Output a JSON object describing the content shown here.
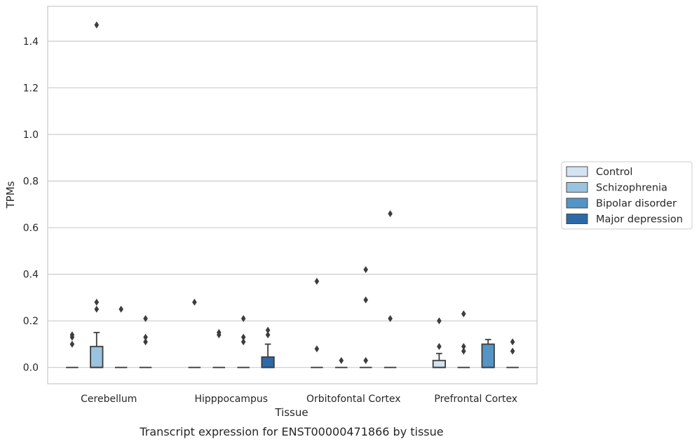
{
  "chart_data": {
    "type": "box",
    "xlabel": "Tissue",
    "ylabel": "TPMs",
    "caption": "Transcript expression for ENST00000471866 by tissue",
    "ylim": [
      -0.07,
      1.55
    ],
    "yticks": [
      "0.0",
      "0.2",
      "0.4",
      "0.6",
      "0.8",
      "1.0",
      "1.2",
      "1.4"
    ],
    "grid": "horizontal",
    "legend_position": "right",
    "categories": [
      "Cerebellum",
      "Hipppocampus",
      "Orbitofontal Cortex",
      "Prefrontal Cortex"
    ],
    "series": [
      {
        "name": "Control",
        "color": "#d3e3f2",
        "boxes": [
          {
            "q1": 0,
            "median": 0,
            "q3": 0,
            "whisker_low": 0,
            "whisker_high": 0,
            "outliers": [
              0.1,
              0.13,
              0.14
            ]
          },
          {
            "q1": 0,
            "median": 0,
            "q3": 0,
            "whisker_low": 0,
            "whisker_high": 0,
            "outliers": [
              0.28
            ]
          },
          {
            "q1": 0,
            "median": 0,
            "q3": 0,
            "whisker_low": 0,
            "whisker_high": 0,
            "outliers": [
              0.08,
              0.37
            ]
          },
          {
            "q1": 0,
            "median": 0,
            "q3": 0.03,
            "whisker_low": 0,
            "whisker_high": 0.06,
            "outliers": [
              0.09,
              0.2
            ]
          }
        ]
      },
      {
        "name": "Schizophrenia",
        "color": "#9ac3de",
        "boxes": [
          {
            "q1": 0,
            "median": 0,
            "q3": 0.09,
            "whisker_low": 0,
            "whisker_high": 0.15,
            "outliers": [
              0.25,
              0.28,
              1.47
            ]
          },
          {
            "q1": 0,
            "median": 0,
            "q3": 0,
            "whisker_low": 0,
            "whisker_high": 0,
            "outliers": [
              0.14,
              0.15
            ]
          },
          {
            "q1": 0,
            "median": 0,
            "q3": 0,
            "whisker_low": 0,
            "whisker_high": 0,
            "outliers": [
              0.03
            ]
          },
          {
            "q1": 0,
            "median": 0,
            "q3": 0,
            "whisker_low": 0,
            "whisker_high": 0,
            "outliers": [
              0.07,
              0.09,
              0.23
            ]
          }
        ]
      },
      {
        "name": "Bipolar disorder",
        "color": "#5595c5",
        "boxes": [
          {
            "q1": 0,
            "median": 0,
            "q3": 0,
            "whisker_low": 0,
            "whisker_high": 0,
            "outliers": [
              0.25
            ]
          },
          {
            "q1": 0,
            "median": 0,
            "q3": 0,
            "whisker_low": 0,
            "whisker_high": 0,
            "outliers": [
              0.11,
              0.13,
              0.21
            ]
          },
          {
            "q1": 0,
            "median": 0,
            "q3": 0,
            "whisker_low": 0,
            "whisker_high": 0,
            "outliers": [
              0.03,
              0.29,
              0.42
            ]
          },
          {
            "q1": 0,
            "median": 0,
            "q3": 0.1,
            "whisker_low": 0,
            "whisker_high": 0.12,
            "outliers": []
          }
        ]
      },
      {
        "name": "Major depression",
        "color": "#2b6aa7",
        "boxes": [
          {
            "q1": 0,
            "median": 0,
            "q3": 0,
            "whisker_low": 0,
            "whisker_high": 0,
            "outliers": [
              0.11,
              0.13,
              0.21
            ]
          },
          {
            "q1": 0,
            "median": 0,
            "q3": 0.045,
            "whisker_low": 0,
            "whisker_high": 0.1,
            "outliers": [
              0.14,
              0.16
            ]
          },
          {
            "q1": 0,
            "median": 0,
            "q3": 0,
            "whisker_low": 0,
            "whisker_high": 0,
            "outliers": [
              0.21,
              0.66
            ]
          },
          {
            "q1": 0,
            "median": 0,
            "q3": 0,
            "whisker_low": 0,
            "whisker_high": 0,
            "outliers": [
              0.07,
              0.11
            ]
          }
        ]
      }
    ]
  }
}
